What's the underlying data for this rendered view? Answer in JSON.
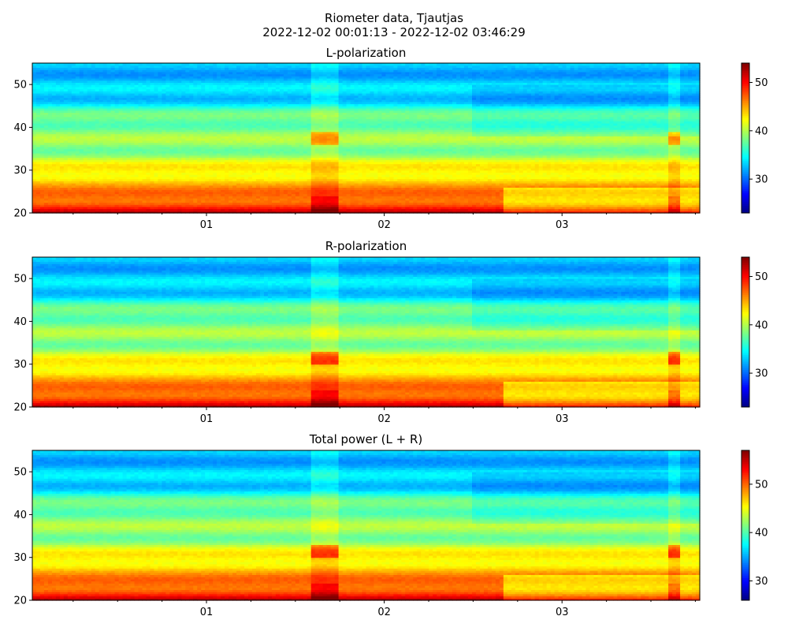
{
  "figure": {
    "suptitle_line1": "Riometer data, Tjautjas",
    "suptitle_line2": "2022-12-02 00:01:13 - 2022-12-02 03:46:29"
  },
  "colormap": "jet",
  "chart_data": [
    {
      "type": "heatmap",
      "title": "L-polarization",
      "x_range": [
        "2022-12-02 00:01:13",
        "2022-12-02 03:46:29"
      ],
      "x_major_ticks": [
        "01",
        "02",
        "03"
      ],
      "ylim": [
        20,
        55
      ],
      "y_ticks": [
        20,
        30,
        40,
        50
      ],
      "colorbar": {
        "range": [
          23,
          54
        ],
        "ticks": [
          30,
          40,
          50
        ]
      },
      "disturbance_bands": [
        {
          "start": "01:35",
          "end": "01:44"
        },
        {
          "start": "03:36",
          "end": "03:40"
        }
      ]
    },
    {
      "type": "heatmap",
      "title": "R-polarization",
      "x_range": [
        "2022-12-02 00:01:13",
        "2022-12-02 03:46:29"
      ],
      "x_major_ticks": [
        "01",
        "02",
        "03"
      ],
      "ylim": [
        20,
        55
      ],
      "y_ticks": [
        20,
        30,
        40,
        50
      ],
      "colorbar": {
        "range": [
          23,
          54
        ],
        "ticks": [
          30,
          40,
          50
        ]
      },
      "disturbance_bands": [
        {
          "start": "01:35",
          "end": "01:44"
        },
        {
          "start": "03:36",
          "end": "03:40"
        }
      ]
    },
    {
      "type": "heatmap",
      "title": "Total power (L + R)",
      "x_range": [
        "2022-12-02 00:01:13",
        "2022-12-02 03:46:29"
      ],
      "x_major_ticks": [
        "01",
        "02",
        "03"
      ],
      "ylim": [
        20,
        55
      ],
      "y_ticks": [
        20,
        30,
        40,
        50
      ],
      "colorbar": {
        "range": [
          26,
          57
        ],
        "ticks": [
          30,
          40,
          50
        ]
      },
      "disturbance_bands": [
        {
          "start": "01:35",
          "end": "01:44"
        },
        {
          "start": "03:36",
          "end": "03:40"
        }
      ]
    }
  ]
}
